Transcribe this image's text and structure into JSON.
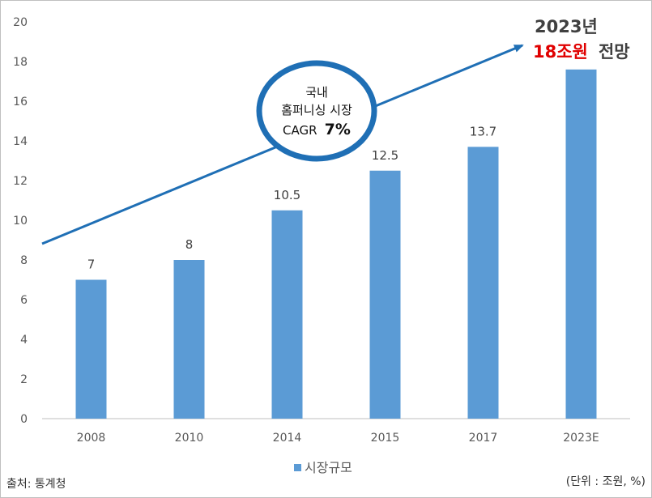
{
  "chart_data": {
    "type": "bar",
    "categories": [
      "2008",
      "2010",
      "2014",
      "2015",
      "2017",
      "2023E"
    ],
    "series": [
      {
        "name": "시장규모",
        "values": [
          7,
          8,
          10.5,
          12.5,
          13.7,
          17.6
        ],
        "data_labels": [
          "7",
          "8",
          "10.5",
          "12.5",
          "13.7",
          ""
        ]
      }
    ],
    "ylim": [
      0,
      20
    ],
    "yticks": [
      "0",
      "2",
      "4",
      "6",
      "8",
      "10",
      "12",
      "14",
      "16",
      "18",
      "20"
    ],
    "grid": false,
    "legend_position": "bottom",
    "bar_color": "#5b9bd5",
    "annotation": {
      "year_line": "2023년",
      "value_text": "18조원",
      "suffix_text": "전망",
      "value_color": "#e00000",
      "arrow_color": "#1f6fb5"
    },
    "circle_note": {
      "line1": "국내",
      "line2": "홈퍼니싱 시장",
      "line3_prefix": "CAGR",
      "line3_value": "7%",
      "border_color": "#1f6fb5"
    }
  },
  "footer": {
    "source": "출처: 통계청",
    "unit": "(단위 : 조원, %)"
  }
}
